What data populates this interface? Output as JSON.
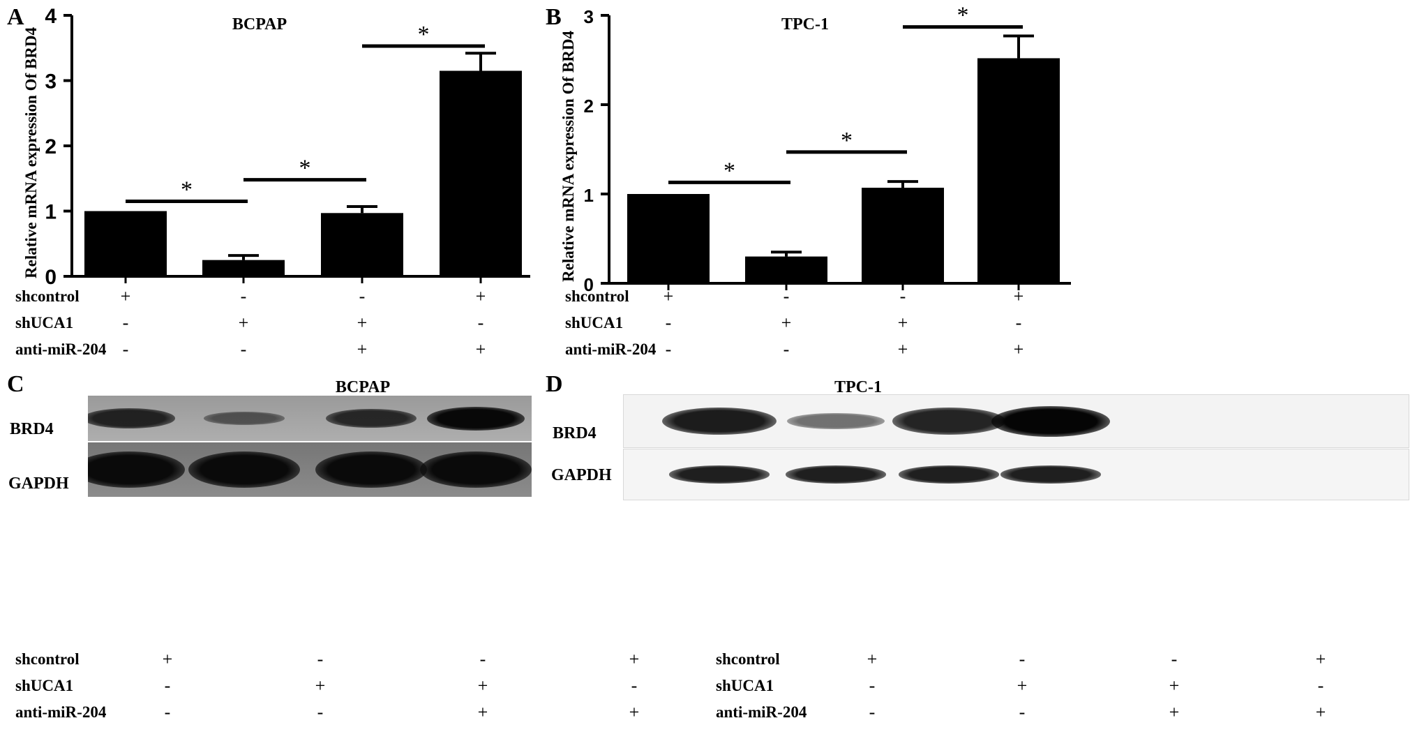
{
  "panels": [
    {
      "letter": "A",
      "title": "BCPAP",
      "ylabel": "Relative mRNA expression Of BRD4",
      "yticks": [
        "0",
        "1",
        "2",
        "3",
        "4"
      ],
      "sig_marker": "*",
      "conditions": [
        {
          "label": "shcontrol",
          "signs": [
            "+",
            "-",
            "-",
            "+"
          ]
        },
        {
          "label": "shUCA1",
          "signs": [
            "-",
            "+",
            "+",
            "-"
          ]
        },
        {
          "label": "anti-miR-204",
          "signs": [
            "-",
            "-",
            "+",
            "+"
          ]
        }
      ]
    },
    {
      "letter": "B",
      "title": "TPC-1",
      "ylabel": "Relative mRNA expression Of BRD4",
      "yticks": [
        "0",
        "1",
        "2",
        "3"
      ],
      "sig_marker": "*",
      "conditions": [
        {
          "label": "shcontrol",
          "signs": [
            "+",
            "-",
            "-",
            "+"
          ]
        },
        {
          "label": "shUCA1",
          "signs": [
            "-",
            "+",
            "+",
            "-"
          ]
        },
        {
          "label": "anti-miR-204",
          "signs": [
            "-",
            "-",
            "+",
            "+"
          ]
        }
      ]
    }
  ],
  "blots": [
    {
      "letter": "C",
      "title": "BCPAP",
      "rows": [
        "BRD4",
        "GAPDH"
      ],
      "conditions": [
        {
          "label": "shcontrol",
          "signs": [
            "+",
            "-",
            "-",
            "+"
          ]
        },
        {
          "label": "shUCA1",
          "signs": [
            "-",
            "+",
            "+",
            "-"
          ]
        },
        {
          "label": "anti-miR-204",
          "signs": [
            "-",
            "-",
            "+",
            "+"
          ]
        }
      ],
      "band_intensity": {
        "BRD4": [
          0.75,
          0.3,
          0.7,
          1.0
        ],
        "GAPDH": [
          1.0,
          1.0,
          1.0,
          1.0
        ]
      }
    },
    {
      "letter": "D",
      "title": "TPC-1",
      "rows": [
        "BRD4",
        "GAPDH"
      ],
      "conditions": [
        {
          "label": "shcontrol",
          "signs": [
            "+",
            "-",
            "-",
            "+"
          ]
        },
        {
          "label": "shUCA1",
          "signs": [
            "-",
            "+",
            "+",
            "-"
          ]
        },
        {
          "label": "anti-miR-204",
          "signs": [
            "-",
            "-",
            "+",
            "+"
          ]
        }
      ],
      "band_intensity": {
        "BRD4": [
          0.85,
          0.3,
          0.8,
          1.0
        ],
        "GAPDH": [
          0.85,
          0.85,
          0.85,
          0.85
        ]
      }
    }
  ],
  "chart_data": [
    {
      "type": "bar",
      "title": "BCPAP",
      "ylabel": "Relative mRNA expression Of BRD4",
      "ylim": [
        0,
        4
      ],
      "values": [
        1.0,
        0.25,
        0.97,
        3.15
      ],
      "errors": [
        0,
        0.07,
        0.1,
        0.27
      ],
      "significance": [
        {
          "from": 0,
          "to": 1,
          "y": 1.15,
          "label": "*"
        },
        {
          "from": 1,
          "to": 2,
          "y": 1.48,
          "label": "*"
        },
        {
          "from": 2,
          "to": 3,
          "y": 3.53,
          "label": "*"
        }
      ]
    },
    {
      "type": "bar",
      "title": "TPC-1",
      "ylabel": "Relative mRNA expression Of BRD4",
      "ylim": [
        0,
        3
      ],
      "values": [
        1.0,
        0.3,
        1.07,
        2.52
      ],
      "errors": [
        0,
        0.05,
        0.07,
        0.25
      ],
      "significance": [
        {
          "from": 0,
          "to": 1,
          "y": 1.13,
          "label": "*"
        },
        {
          "from": 1,
          "to": 2,
          "y": 1.47,
          "label": "*"
        },
        {
          "from": 2,
          "to": 3,
          "y": 2.87,
          "label": "*"
        }
      ]
    }
  ]
}
